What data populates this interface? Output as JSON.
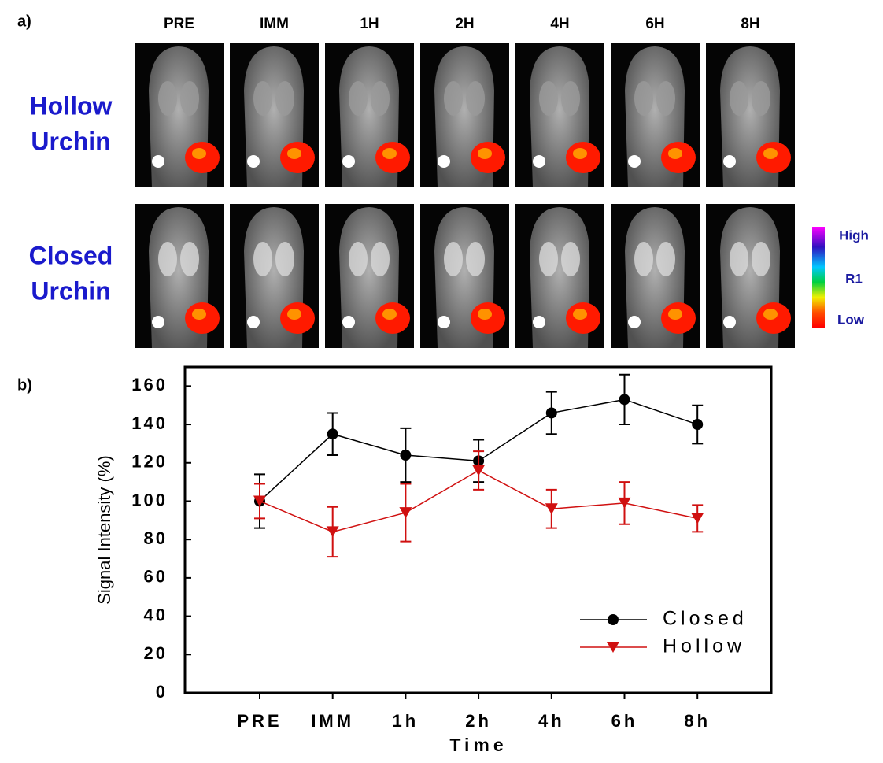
{
  "panel_a": {
    "label": "a)",
    "columns": [
      "PRE",
      "IMM",
      "1H",
      "2H",
      "4H",
      "6H",
      "8H"
    ],
    "rows": [
      [
        "Hollow",
        "Urchin"
      ],
      [
        "Closed",
        "Urchin"
      ]
    ],
    "colorbar": {
      "high": "High",
      "mid": "R1",
      "low": "Low"
    }
  },
  "chart_data": {
    "type": "line",
    "panel_label": "b)",
    "xlabel": "Time",
    "ylabel": "Signal Intensity (%)",
    "categories": [
      "PRE",
      "IMM",
      "1h",
      "2h",
      "4h",
      "6h",
      "8h"
    ],
    "series": [
      {
        "name": "Closed",
        "color": "#000000",
        "marker": "circle",
        "values": [
          100,
          135,
          124,
          121,
          146,
          153,
          140
        ],
        "errors": [
          14,
          11,
          14,
          11,
          11,
          13,
          10
        ]
      },
      {
        "name": "Hollow",
        "color": "#d01010",
        "marker": "triangle-down",
        "values": [
          100,
          84,
          94,
          116,
          96,
          99,
          91
        ],
        "errors": [
          9,
          13,
          15,
          10,
          10,
          11,
          7
        ]
      }
    ],
    "ylim": [
      0,
      170
    ],
    "yticks": [
      0,
      20,
      40,
      60,
      80,
      100,
      120,
      140,
      160
    ]
  }
}
